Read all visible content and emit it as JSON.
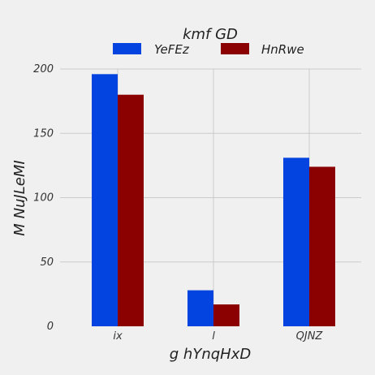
{
  "chart_data": {
    "type": "bar",
    "title": "",
    "xlabel": "g hYnqHxD",
    "ylabel": "M NuJLeMI",
    "categories": [
      "ix",
      "l",
      "QJNZ"
    ],
    "series": [
      {
        "name": "YeFEz",
        "values": [
          196,
          28,
          131
        ],
        "color": "#0343df"
      },
      {
        "name": "HnRwe",
        "values": [
          180,
          17,
          124
        ],
        "color": "#8b0000"
      }
    ],
    "ylim": [
      0,
      200
    ],
    "yticks": [
      0,
      50,
      100,
      150,
      200
    ],
    "grid": true,
    "legend": {
      "title": "kmf GD",
      "placement": "top-center"
    }
  }
}
